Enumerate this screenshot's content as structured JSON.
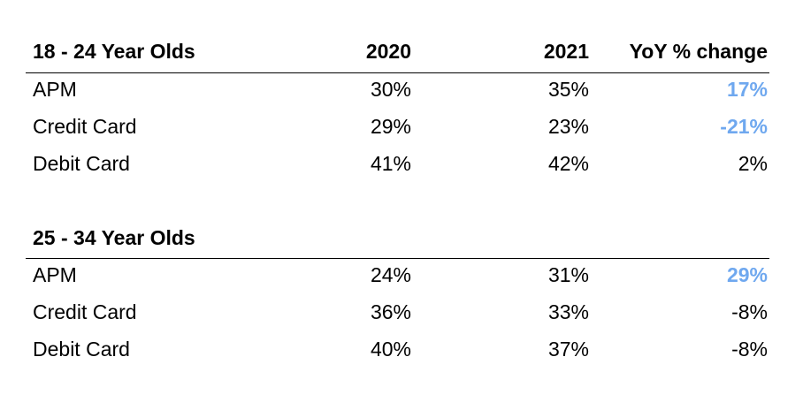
{
  "chart_data": {
    "type": "table",
    "columns": [
      "2020",
      "2021",
      "YoY % change"
    ],
    "colors": {
      "highlight": "#6fa8ef",
      "text": "#000000"
    },
    "groups": [
      {
        "title": "18 - 24 Year Olds",
        "rows": [
          {
            "label": "APM",
            "v2020": "30%",
            "v2021": "35%",
            "yoy": "17%",
            "highlight": true
          },
          {
            "label": "Credit Card",
            "v2020": "29%",
            "v2021": "23%",
            "yoy": "-21%",
            "highlight": true
          },
          {
            "label": "Debit Card",
            "v2020": "41%",
            "v2021": "42%",
            "yoy": "2%",
            "highlight": false
          }
        ]
      },
      {
        "title": "25 - 34 Year Olds",
        "rows": [
          {
            "label": "APM",
            "v2020": "24%",
            "v2021": "31%",
            "yoy": "29%",
            "highlight": true
          },
          {
            "label": "Credit Card",
            "v2020": "36%",
            "v2021": "33%",
            "yoy": "-8%",
            "highlight": false
          },
          {
            "label": "Debit Card",
            "v2020": "40%",
            "v2021": "37%",
            "yoy": "-8%",
            "highlight": false
          }
        ]
      }
    ]
  }
}
